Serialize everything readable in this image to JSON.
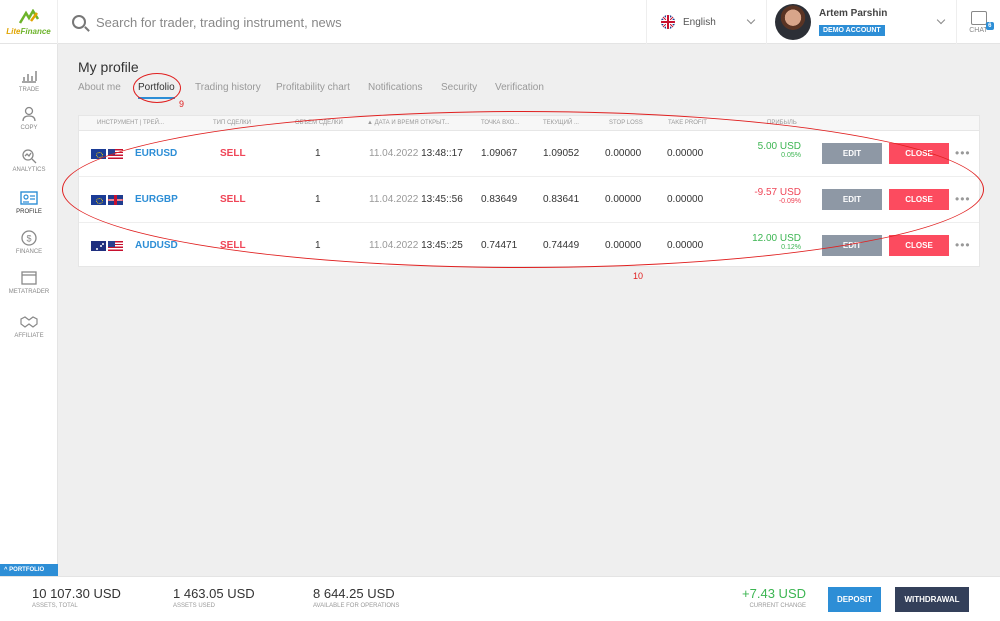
{
  "brand": {
    "name_a": "Lite",
    "name_b": "Finance"
  },
  "search": {
    "placeholder": "Search for trader, trading instrument, news"
  },
  "language": {
    "selected": "English"
  },
  "user": {
    "name": "Artem Parshin",
    "badge": "DEMO ACCOUNT"
  },
  "chat": {
    "label": "CHAT",
    "count": "6"
  },
  "sidebar": {
    "items": [
      {
        "label": "TRADE",
        "icon": "chart-icon"
      },
      {
        "label": "COPY",
        "icon": "person-icon"
      },
      {
        "label": "ANALYTICS",
        "icon": "analytics-icon"
      },
      {
        "label": "PROFILE",
        "icon": "id-card-icon",
        "active": true
      },
      {
        "label": "FINANCE",
        "icon": "dollar-icon"
      },
      {
        "label": "METATRADER",
        "icon": "window-icon"
      },
      {
        "label": "AFFILIATE",
        "icon": "handshake-icon"
      }
    ],
    "portfolio_toggle": "^ PORTFOLIO"
  },
  "page": {
    "title": "My profile"
  },
  "tabs": [
    {
      "label": "About me"
    },
    {
      "label": "Portfolio",
      "active": true
    },
    {
      "label": "Trading history"
    },
    {
      "label": "Profitability chart"
    },
    {
      "label": "Notifications"
    },
    {
      "label": "Security"
    },
    {
      "label": "Verification"
    }
  ],
  "table": {
    "headers": {
      "instrument": "ИНСТРУМЕНТ | ТРЕЙ...",
      "type": "ТИП СДЕЛКИ",
      "volume": "ОБЪЕМ СДЕЛКИ",
      "time": "▲ ДАТА И ВРЕМЯ ОТКРЫТ...",
      "entry": "ТОЧКА ВХО...",
      "current": "ТЕКУЩИЙ ...",
      "stop_loss": "STOP LOSS",
      "take_profit": "TAKE PROFIT",
      "profit": "ПРИБЫЛЬ"
    },
    "rows": [
      {
        "flags": [
          "eu",
          "us"
        ],
        "symbol": "EURUSD",
        "type": "SELL",
        "volume": "1",
        "date": "11.04.2022",
        "time": "13:48::17",
        "entry": "1.09067",
        "current": "1.09052",
        "stop_loss": "0.00000",
        "take_profit": "0.00000",
        "profit": "5.00 USD",
        "profit_pct": "0.05%",
        "positive": true
      },
      {
        "flags": [
          "eu",
          "uk"
        ],
        "symbol": "EURGBP",
        "type": "SELL",
        "volume": "1",
        "date": "11.04.2022",
        "time": "13:45::56",
        "entry": "0.83649",
        "current": "0.83641",
        "stop_loss": "0.00000",
        "take_profit": "0.00000",
        "profit": "-9.57 USD",
        "profit_pct": "-0.09%",
        "positive": false
      },
      {
        "flags": [
          "au",
          "us"
        ],
        "symbol": "AUDUSD",
        "type": "SELL",
        "volume": "1",
        "date": "11.04.2022",
        "time": "13:45::25",
        "entry": "0.74471",
        "current": "0.74449",
        "stop_loss": "0.00000",
        "take_profit": "0.00000",
        "profit": "12.00 USD",
        "profit_pct": "0.12%",
        "positive": true
      }
    ],
    "actions": {
      "edit": "EDIT",
      "close": "CLOSE",
      "more": "•••"
    }
  },
  "annotations": {
    "tab_marker": "9",
    "table_marker": "10"
  },
  "footer": {
    "assets_total": {
      "value": "10 107.30 USD",
      "label": "ASSETS, TOTAL"
    },
    "assets_used": {
      "value": "1 463.05 USD",
      "label": "ASSETS USED"
    },
    "available": {
      "value": "8 644.25 USD",
      "label": "AVAILABLE FOR OPERATIONS"
    },
    "change": {
      "value": "+7.43 USD",
      "label": "CURRENT CHANGE"
    },
    "deposit": "DEPOSIT",
    "withdrawal": "WITHDRAWAL"
  },
  "colors": {
    "accent": "#2d8ed6",
    "sell": "#ef4557",
    "profit_pos": "#3cb552",
    "close_btn": "#fc4b5f",
    "edit_btn": "#8e98a5",
    "annotation": "#e02020"
  }
}
